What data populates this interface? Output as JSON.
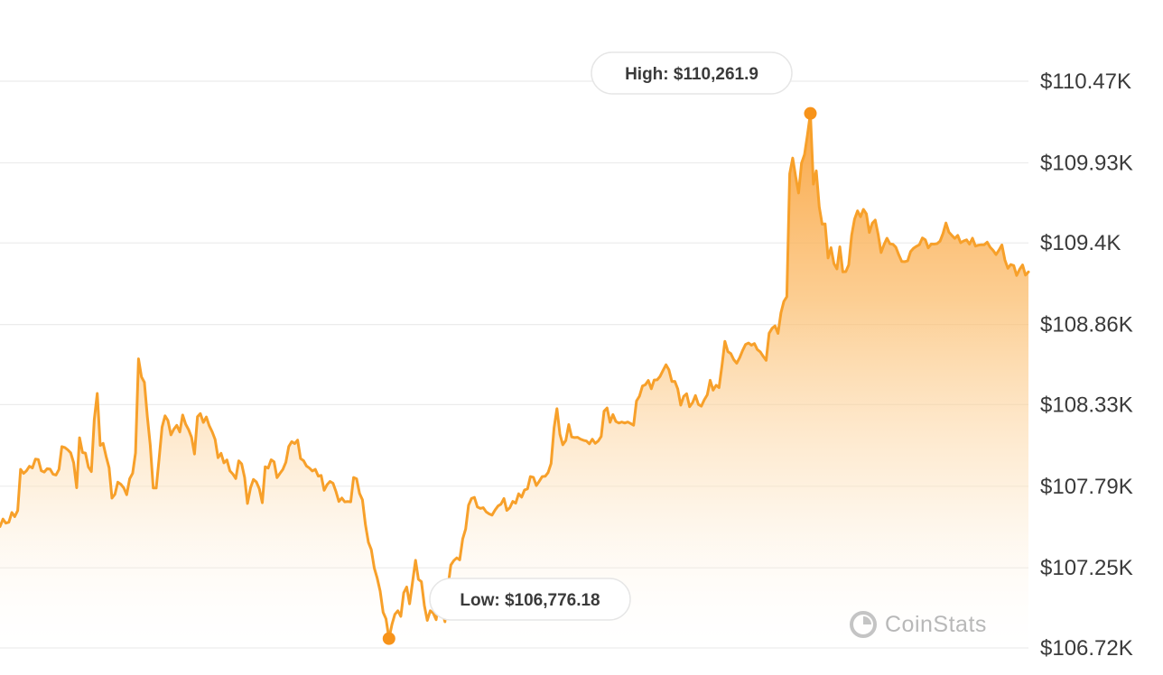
{
  "chart_data": {
    "type": "area",
    "y_axis": {
      "position": "right",
      "ylim": [
        106720,
        110470
      ],
      "tick_labels": [
        "$110.47K",
        "$109.93K",
        "$109.4K",
        "$108.86K",
        "$108.33K",
        "$107.79K",
        "$107.25K",
        "$106.72K"
      ],
      "tick_values": [
        110470,
        109930,
        109400,
        108860,
        108330,
        107790,
        107250,
        106720
      ]
    },
    "grid": true,
    "colors": {
      "line": "#f7a02a",
      "fill_top": "#f9a23c",
      "fill_bottom": "#ffffff",
      "marker": "#f7931a"
    },
    "high": {
      "label": "High: $110,261.9",
      "value": 110261.9
    },
    "low": {
      "label": "Low: $106,776.18",
      "value": 106776.18
    },
    "series": [
      {
        "values": [
          107523,
          107573,
          107546,
          107552,
          107616,
          107589,
          107629,
          107902,
          107875,
          107893,
          107922,
          107911,
          107969,
          107967,
          107893,
          107884,
          107906,
          107903,
          107870,
          107864,
          107901,
          108052,
          108046,
          108031,
          108011,
          107945,
          107780,
          108111,
          108013,
          108009,
          107917,
          107887,
          108231,
          108404,
          108060,
          108074,
          107988,
          107913,
          107711,
          107737,
          107817,
          107803,
          107779,
          107734,
          107839,
          107876,
          108011,
          108633,
          108513,
          108478,
          108249,
          108063,
          107778,
          107778,
          107972,
          108182,
          108256,
          108225,
          108130,
          108168,
          108193,
          108149,
          108261,
          108201,
          108164,
          108115,
          108003,
          108250,
          108271,
          108212,
          108248,
          108191,
          108150,
          108100,
          107979,
          108008,
          107945,
          107964,
          107892,
          107871,
          107841,
          107958,
          107938,
          107848,
          107676,
          107778,
          107835,
          107819,
          107773,
          107681,
          107919,
          107910,
          107965,
          107952,
          107847,
          107875,
          107902,
          107949,
          108053,
          108085,
          108072,
          108095,
          107973,
          107959,
          107924,
          107910,
          107891,
          107902,
          107857,
          107861,
          107763,
          107801,
          107822,
          107810,
          107754,
          107689,
          107712,
          107687,
          107689,
          107687,
          107848,
          107839,
          107742,
          107700,
          107536,
          107419,
          107370,
          107249,
          107183,
          107097,
          106956,
          106912,
          106782,
          106876,
          106942,
          106966,
          106929,
          107085,
          107123,
          107012,
          107156,
          107300,
          107174,
          107158,
          107000,
          106902,
          106966,
          106950,
          106907,
          107037,
          106964,
          106893,
          107125,
          107269,
          107298,
          107316,
          107303,
          107441,
          107507,
          107664,
          107709,
          107716,
          107653,
          107643,
          107648,
          107620,
          107607,
          107599,
          107633,
          107659,
          107671,
          107708,
          107630,
          107648,
          107690,
          107678,
          107740,
          107718,
          107765,
          107773,
          107854,
          107849,
          107794,
          107823,
          107854,
          107856,
          107880,
          107940,
          108176,
          108303,
          108134,
          108064,
          108093,
          108198,
          108116,
          108112,
          108114,
          108102,
          108094,
          108089,
          108071,
          108101,
          108074,
          108089,
          108119,
          108286,
          108308,
          108213,
          108264,
          108218,
          108208,
          108215,
          108208,
          108215,
          108205,
          108194,
          108354,
          108386,
          108453,
          108461,
          108490,
          108435,
          108493,
          108494,
          108517,
          108557,
          108594,
          108561,
          108483,
          108484,
          108434,
          108326,
          108385,
          108402,
          108316,
          108342,
          108390,
          108331,
          108320,
          108362,
          108395,
          108491,
          108426,
          108458,
          108443,
          108590,
          108749,
          108681,
          108667,
          108628,
          108604,
          108641,
          108688,
          108728,
          108738,
          108723,
          108734,
          108695,
          108679,
          108649,
          108623,
          108802,
          108835,
          108851,
          108801,
          108938,
          109013,
          109044,
          109858,
          109961,
          109838,
          109730,
          109928,
          109985,
          110113,
          110257,
          109789,
          109877,
          109638,
          109524,
          109526,
          109300,
          109368,
          109263,
          109228,
          109374,
          109208,
          109210,
          109254,
          109451,
          109557,
          109612,
          109573,
          109622,
          109592,
          109469,
          109530,
          109551,
          109455,
          109336,
          109390,
          109431,
          109394,
          109391,
          109372,
          109321,
          109277,
          109276,
          109281,
          109343,
          109365,
          109378,
          109388,
          109433,
          109420,
          109367,
          109393,
          109392,
          109395,
          109412,
          109463,
          109532,
          109471,
          109450,
          109430,
          109450,
          109401,
          109413,
          109420,
          109392,
          109431,
          109379,
          109385,
          109388,
          109388,
          109405,
          109371,
          109351,
          109323,
          109353,
          109387,
          109287,
          109232,
          109257,
          109250,
          109185,
          109225,
          109254,
          109187,
          109208
        ]
      }
    ]
  },
  "watermark": {
    "text": "CoinStats"
  }
}
